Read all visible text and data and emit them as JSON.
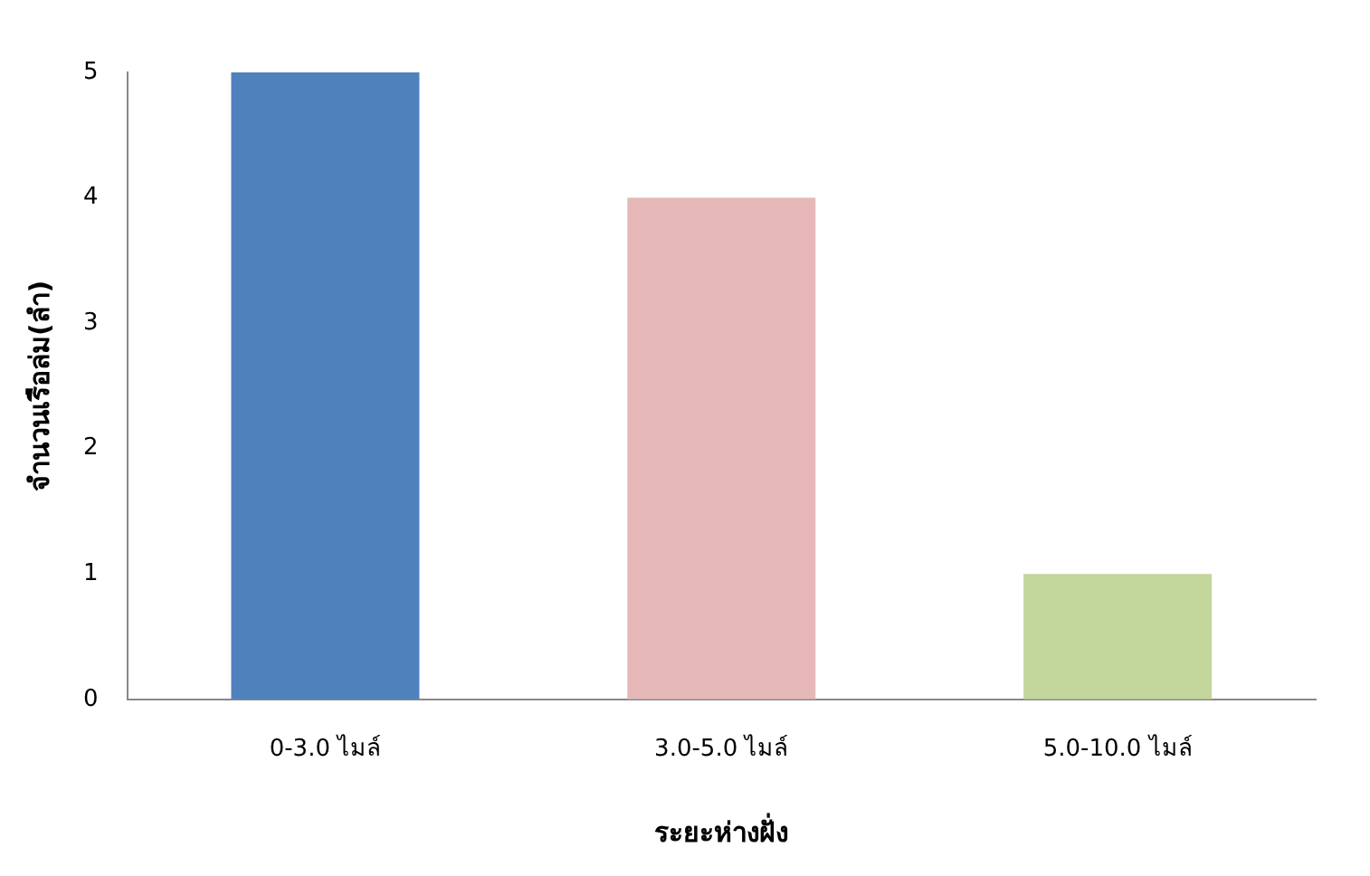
{
  "chart_data": {
    "type": "bar",
    "xlabel": "ระยะห่างฝั่ง",
    "ylabel": "จำนวนเรือล่ม(ลำ)",
    "categories": [
      "0-3.0 ไมล์",
      "3.0-5.0 ไมล์",
      "5.0-10.0 ไมล์"
    ],
    "values": [
      5,
      4,
      1
    ],
    "colors": [
      "#4f81bd",
      "#e6b9b8",
      "#c3d69b"
    ],
    "ylim": [
      0,
      5
    ],
    "yticks": [
      0,
      1,
      2,
      3,
      4,
      5
    ],
    "grid": false,
    "legend": false
  }
}
